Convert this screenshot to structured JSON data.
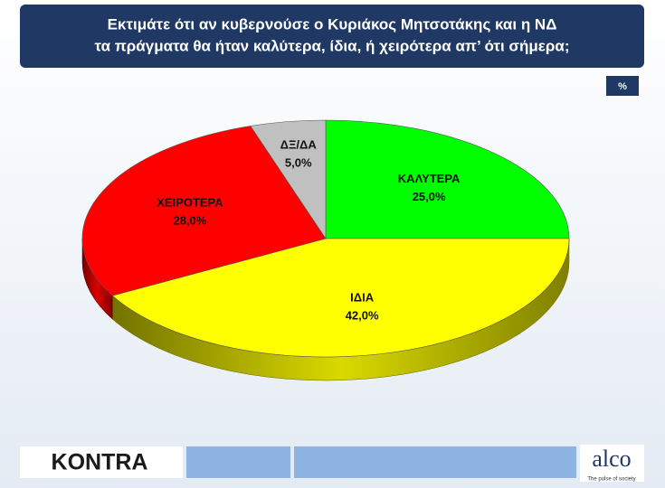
{
  "title": [
    "Εκτιμάτε ότι αν κυβερνούσε ο Κυριάκος Μητσοτάκης και η ΝΔ",
    "τα πράγματα θα ήταν καλύτερα, ίδια, ή χειρότερα απ’  ότι σήμερα;"
  ],
  "chart_data": {
    "type": "pie",
    "unit_badge": "%",
    "categories": [
      "ΚΑΛΥΤΕΡΑ",
      "ΙΔΙΑ",
      "ΧΕΙΡΟΤΕΡΑ",
      "ΔΞ/ΔΑ"
    ],
    "values": [
      25,
      42,
      28,
      5
    ],
    "value_labels": [
      "25,0%",
      "42,0%",
      "28,0%",
      "5,0%"
    ],
    "colors": [
      "#00ff00",
      "#ffff00",
      "#ff0000",
      "#c0c0c0"
    ]
  },
  "footer": {
    "left_logo": "KONTRA",
    "right_logo": "alco",
    "tagline": "The pulse of society"
  }
}
